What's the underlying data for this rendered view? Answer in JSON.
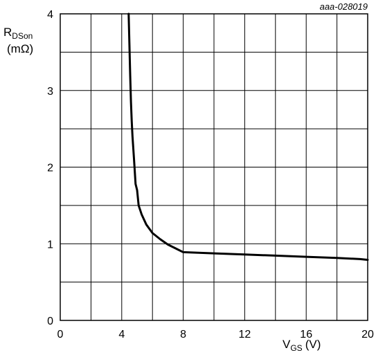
{
  "chart_data": {
    "type": "line",
    "figure_code": "aaa-028019",
    "ylabel_main": "R",
    "ylabel_sub": "DSon",
    "ylabel_unit": "(mΩ)",
    "xlabel_main": "V",
    "xlabel_sub": "GS",
    "xlabel_unit": "(V)",
    "xlim": [
      0,
      20
    ],
    "ylim": [
      0,
      4
    ],
    "grid": true,
    "x_ticks": [
      0,
      4,
      8,
      12,
      16,
      20
    ],
    "y_ticks": [
      0,
      1,
      2,
      3,
      4
    ],
    "x_grid_step": 2,
    "y_grid_step": 0.5,
    "series": [
      {
        "x": [
          4.45,
          4.5,
          4.55,
          4.6,
          4.65,
          4.7,
          4.8,
          4.9,
          5.0,
          5.1,
          5.3,
          5.6,
          6.0,
          6.5,
          7.0,
          7.5,
          8.0,
          10.0,
          12.0,
          14.0,
          16.0,
          18.0,
          19.5,
          20.0
        ],
        "y": [
          4.0,
          3.6,
          3.2,
          2.85,
          2.6,
          2.4,
          2.1,
          1.78,
          1.7,
          1.5,
          1.38,
          1.25,
          1.14,
          1.06,
          0.99,
          0.94,
          0.89,
          0.875,
          0.86,
          0.845,
          0.83,
          0.815,
          0.8,
          0.79
        ],
        "color": "#000000"
      }
    ]
  }
}
